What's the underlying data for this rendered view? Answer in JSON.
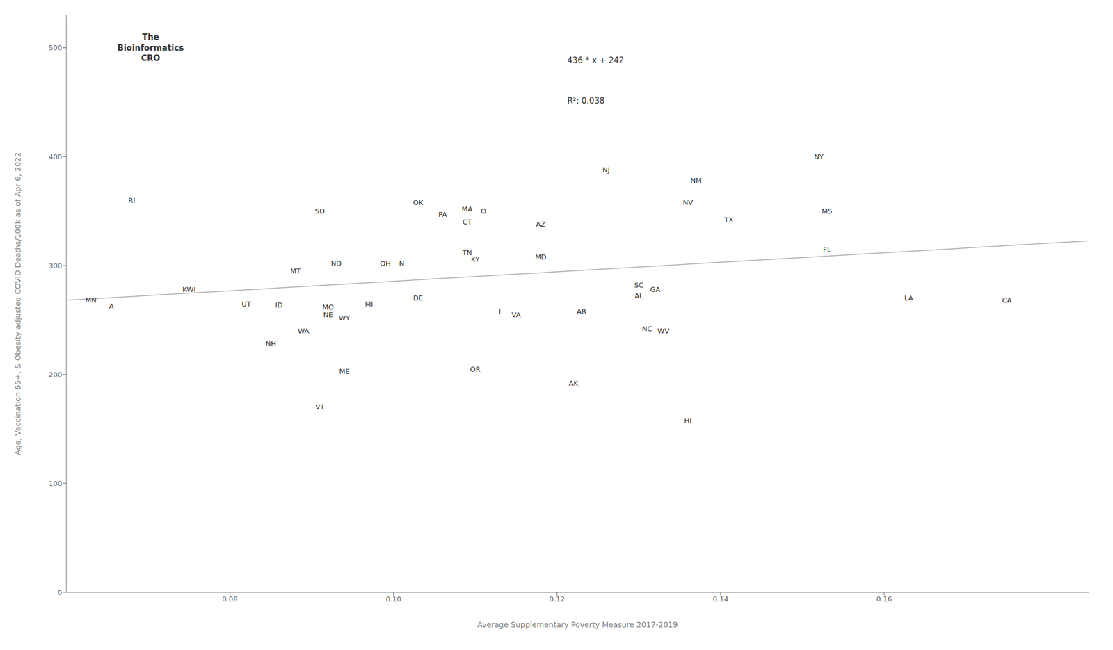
{
  "chart_data": {
    "type": "scatter",
    "xlabel": "Average Supplementary Poverty Measure 2017-2019",
    "ylabel": "Age, Vaccination 65+, & Obesity adjusted COVID Deaths/100k as of Apr 6, 2022",
    "xlim": [
      0.06,
      0.185
    ],
    "ylim": [
      0,
      530
    ],
    "xticks": [
      0.08,
      {
        "value": 0.1,
        "label": "0.10"
      },
      0.12,
      0.14,
      0.16
    ],
    "yticks": [
      0,
      100,
      200,
      300,
      400,
      500
    ],
    "grid": false,
    "series": [
      {
        "type": "line",
        "color": "#aaaaaa",
        "x": [
          0.06,
          0.185
        ],
        "values": [
          268.16,
          322.66
        ]
      },
      {
        "type": "scatter",
        "marker": "none",
        "x": [
          0.063,
          0.0655,
          0.068,
          0.075,
          0.082,
          0.086,
          0.085,
          0.088,
          0.091,
          0.089,
          0.092,
          0.092,
          0.093,
          0.091,
          0.094,
          0.094,
          0.097,
          0.099,
          0.101,
          0.103,
          0.103,
          0.106,
          0.109,
          0.109,
          0.111,
          0.109,
          0.11,
          0.11,
          0.113,
          0.115,
          0.118,
          0.118,
          0.122,
          0.123,
          0.126,
          0.13,
          0.132,
          0.13,
          0.131,
          0.133,
          0.137,
          0.136,
          0.136,
          0.141,
          0.152,
          0.153,
          0.153,
          0.163,
          0.175
        ],
        "values": [
          268,
          263,
          360,
          278,
          265,
          264,
          228,
          295,
          350,
          240,
          262,
          255,
          302,
          170,
          203,
          252,
          265,
          302,
          302,
          270,
          358,
          347,
          312,
          352,
          350,
          340,
          306,
          205,
          258,
          255,
          338,
          308,
          192,
          258,
          388,
          282,
          278,
          272,
          242,
          240,
          378,
          358,
          158,
          342,
          400,
          350,
          315,
          270,
          268
        ],
        "point_labels": [
          "MN",
          "A",
          "RI",
          "KWI",
          "UT",
          "ID",
          "NH",
          "MT",
          "SD",
          "WA",
          "MO",
          "NE",
          "ND",
          "VT",
          "ME",
          "WY",
          "MI",
          "OH",
          "N",
          "DE",
          "OK",
          "PA",
          "TN",
          "MA",
          "O",
          "CT",
          "KY",
          "OR",
          "I",
          "VA",
          "AZ",
          "MD",
          "AK",
          "AR",
          "NJ",
          "SC",
          "GA",
          "AL",
          "NC",
          "WV",
          "NM",
          "NV",
          "HI",
          "TX",
          "NY",
          "MS",
          "FL",
          "LA",
          "CA"
        ]
      }
    ],
    "annotations": [
      "436 * x + 242",
      "R²: 0.038"
    ],
    "logo_text": [
      "The\nBioinformatics",
      "CRO"
    ]
  }
}
